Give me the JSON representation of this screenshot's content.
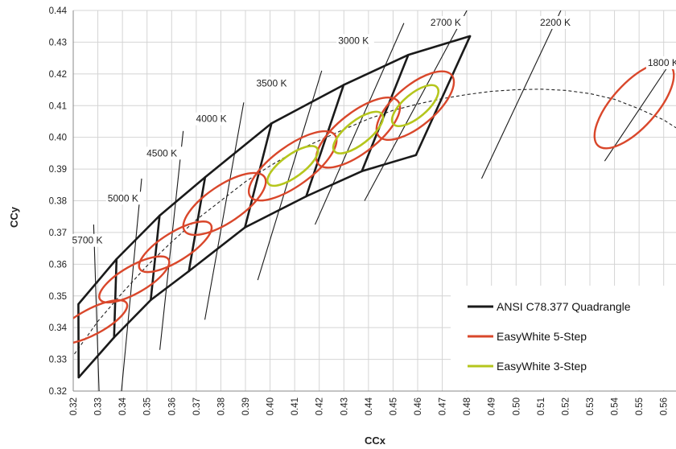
{
  "chart_data": {
    "type": "scatter",
    "xlabel": "CCx",
    "ylabel": "CCy",
    "xlim": [
      0.32,
      0.565
    ],
    "ylim": [
      0.32,
      0.44
    ],
    "xticks": [
      "0.32",
      "0.33",
      "0.34",
      "0.35",
      "0.36",
      "0.37",
      "0.38",
      "0.39",
      "0.40",
      "0.41",
      "0.42",
      "0.43",
      "0.44",
      "0.45",
      "0.46",
      "0.47",
      "0.48",
      "0.49",
      "0.50",
      "0.51",
      "0.52",
      "0.53",
      "0.54",
      "0.55",
      "0.56"
    ],
    "yticks": [
      "0.32",
      "0.33",
      "0.34",
      "0.35",
      "0.36",
      "0.37",
      "0.38",
      "0.39",
      "0.40",
      "0.41",
      "0.42",
      "0.43",
      "0.44"
    ],
    "grid": true,
    "legend_position": "bottom-right",
    "legend": [
      {
        "label": "ANSI C78.377 Quadrangle",
        "color": "#1a1a1a"
      },
      {
        "label": "EasyWhite 5-Step",
        "color": "#d9472b"
      },
      {
        "label": "EasyWhite 3-Step",
        "color": "#b5c61d"
      }
    ],
    "quad_upper": [
      [
        0.3221,
        0.3474
      ],
      [
        0.3376,
        0.3616
      ],
      [
        0.3551,
        0.3753
      ],
      [
        0.3736,
        0.3874
      ],
      [
        0.4006,
        0.4044
      ],
      [
        0.4299,
        0.4165
      ],
      [
        0.4562,
        0.426
      ],
      [
        0.4813,
        0.4319
      ]
    ],
    "quad_lower": [
      [
        0.3207,
        0.3462
      ],
      [
        0.3366,
        0.3369
      ],
      [
        0.3515,
        0.3487
      ],
      [
        0.367,
        0.3578
      ],
      [
        0.3898,
        0.3716
      ],
      [
        0.4147,
        0.3814
      ],
      [
        0.4373,
        0.3893
      ],
      [
        0.4593,
        0.3944
      ]
    ],
    "quad_lower_edge": [
      [
        0.3222,
        0.3243
      ],
      [
        0.3366,
        0.3369
      ],
      [
        0.3515,
        0.3487
      ],
      [
        0.367,
        0.3578
      ],
      [
        0.3898,
        0.3716
      ],
      [
        0.4147,
        0.3814
      ],
      [
        0.4373,
        0.3893
      ],
      [
        0.4593,
        0.3944
      ]
    ],
    "isotherms": [
      {
        "label": "5700 K",
        "label_at": [
          0.3195,
          0.3665
        ],
        "line": [
          [
            0.3283,
            0.3725
          ],
          [
            0.3305,
            0.32
          ]
        ]
      },
      {
        "label": "5000 K",
        "label_at": [
          0.334,
          0.3798
        ],
        "line": [
          [
            0.3478,
            0.387
          ],
          [
            0.3396,
            0.32
          ]
        ]
      },
      {
        "label": "4500 K",
        "label_at": [
          0.3498,
          0.394
        ],
        "line": [
          [
            0.3647,
            0.402
          ],
          [
            0.3552,
            0.333
          ]
        ]
      },
      {
        "label": "4000 K",
        "label_at": [
          0.3699,
          0.4048
        ],
        "line": [
          [
            0.3893,
            0.411
          ],
          [
            0.3735,
            0.3425
          ]
        ]
      },
      {
        "label": "3500 K",
        "label_at": [
          0.3944,
          0.416
        ],
        "line": [
          [
            0.421,
            0.421
          ],
          [
            0.395,
            0.355
          ]
        ]
      },
      {
        "label": "3000 K",
        "label_at": [
          0.4277,
          0.4295
        ],
        "line": [
          [
            0.4544,
            0.436
          ],
          [
            0.4183,
            0.3725
          ]
        ]
      },
      {
        "label": "2700 K",
        "label_at": [
          0.4652,
          0.4352
        ],
        "line": [
          [
            0.48,
            0.44
          ],
          [
            0.4384,
            0.38
          ]
        ]
      },
      {
        "label": "2200 K",
        "label_at": [
          0.5097,
          0.4352
        ],
        "line": [
          [
            0.5182,
            0.44
          ],
          [
            0.486,
            0.387
          ]
        ]
      },
      {
        "label": "1800 K",
        "label_at": [
          0.5535,
          0.4225
        ],
        "line": [
          [
            0.564,
            0.425
          ],
          [
            0.536,
            0.3925
          ]
        ]
      }
    ],
    "planckian_locus": [
      [
        0.3205,
        0.3317
      ],
      [
        0.33,
        0.342
      ],
      [
        0.34,
        0.351
      ],
      [
        0.35,
        0.3595
      ],
      [
        0.36,
        0.367
      ],
      [
        0.37,
        0.374
      ],
      [
        0.38,
        0.38
      ],
      [
        0.39,
        0.386
      ],
      [
        0.4,
        0.391
      ],
      [
        0.41,
        0.3955
      ],
      [
        0.42,
        0.399
      ],
      [
        0.43,
        0.4025
      ],
      [
        0.44,
        0.4058
      ],
      [
        0.45,
        0.4085
      ],
      [
        0.46,
        0.4105
      ],
      [
        0.47,
        0.4122
      ],
      [
        0.48,
        0.4135
      ],
      [
        0.49,
        0.4145
      ],
      [
        0.5,
        0.415
      ],
      [
        0.51,
        0.4152
      ],
      [
        0.52,
        0.4148
      ],
      [
        0.53,
        0.4138
      ],
      [
        0.54,
        0.412
      ],
      [
        0.55,
        0.409
      ],
      [
        0.56,
        0.4055
      ],
      [
        0.565,
        0.403
      ]
    ],
    "ellipses_5step": [
      {
        "cx": 0.3275,
        "cy": 0.3418,
        "rx": 0.0052,
        "ry": 0.0125,
        "tilt_deg": 62
      },
      {
        "cx": 0.3448,
        "cy": 0.3552,
        "rx": 0.0055,
        "ry": 0.0125,
        "tilt_deg": 60
      },
      {
        "cx": 0.3615,
        "cy": 0.3655,
        "rx": 0.0058,
        "ry": 0.0132,
        "tilt_deg": 58
      },
      {
        "cx": 0.3815,
        "cy": 0.379,
        "rx": 0.0075,
        "ry": 0.0152,
        "tilt_deg": 56
      },
      {
        "cx": 0.4092,
        "cy": 0.391,
        "rx": 0.008,
        "ry": 0.0165,
        "tilt_deg": 54
      },
      {
        "cx": 0.4358,
        "cy": 0.4015,
        "rx": 0.0082,
        "ry": 0.016,
        "tilt_deg": 52
      },
      {
        "cx": 0.459,
        "cy": 0.41,
        "rx": 0.0082,
        "ry": 0.015,
        "tilt_deg": 50
      },
      {
        "cx": 0.548,
        "cy": 0.41,
        "rx": 0.009,
        "ry": 0.017,
        "tilt_deg": 42
      }
    ],
    "ellipses_3step": [
      {
        "cx": 0.4092,
        "cy": 0.391,
        "rx": 0.0045,
        "ry": 0.0095,
        "tilt_deg": 54
      },
      {
        "cx": 0.4358,
        "cy": 0.4015,
        "rx": 0.0048,
        "ry": 0.0095,
        "tilt_deg": 52
      },
      {
        "cx": 0.459,
        "cy": 0.41,
        "rx": 0.0048,
        "ry": 0.009,
        "tilt_deg": 50
      }
    ]
  }
}
